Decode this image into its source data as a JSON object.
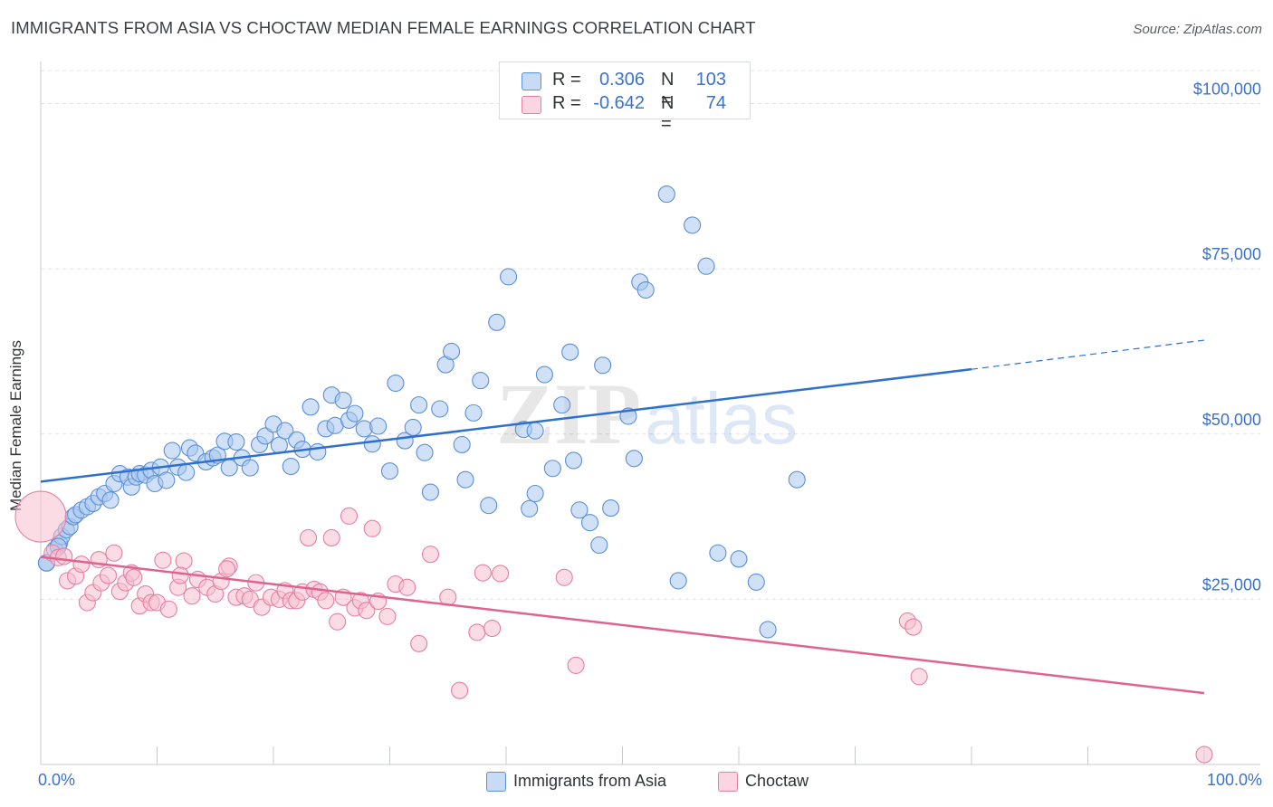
{
  "title": "IMMIGRANTS FROM ASIA VS CHOCTAW MEDIAN FEMALE EARNINGS CORRELATION CHART",
  "source": "Source: ZipAtlas.com",
  "watermark": "ZIPatlas",
  "legend_top": {
    "rows": [
      {
        "r_label": "R =",
        "r_value": "0.306",
        "n_label": "N =",
        "n_value": "103",
        "color": "#a9c8f0",
        "stroke": "#5b8fd6"
      },
      {
        "r_label": "R =",
        "r_value": "-0.642",
        "n_label": "N =",
        "n_value": "74",
        "color": "#f7bfd0",
        "stroke": "#e77ea3"
      }
    ]
  },
  "chart_data": {
    "type": "scatter",
    "xlabel": "",
    "ylabel": "Median Female Earnings",
    "x_tick_labels": [
      "0.0%",
      "100.0%"
    ],
    "y_tick_labels": [
      "$25,000",
      "$50,000",
      "$75,000",
      "$100,000"
    ],
    "xlim": [
      0,
      100
    ],
    "ylim": [
      0,
      105000
    ],
    "y_ticks": [
      25000,
      50000,
      75000,
      100000
    ],
    "grid": true,
    "legend": "bottom",
    "series": [
      {
        "name": "Immigrants from Asia",
        "color": "#a9c8f0",
        "stroke": "#5b8fd6",
        "line_color": "#2e6fcf",
        "trend": {
          "x0": 0,
          "y0": 42800,
          "x1": 80,
          "y1": 59800,
          "dash_to_x": 100,
          "dash_to_y": 64200
        },
        "points": [
          [
            0.5,
            30500
          ],
          [
            1.2,
            32500
          ],
          [
            1.6,
            33500
          ],
          [
            1.8,
            34500
          ],
          [
            2.2,
            35500
          ],
          [
            2.5,
            36000
          ],
          [
            2.8,
            37500
          ],
          [
            3.0,
            37800
          ],
          [
            3.5,
            38500
          ],
          [
            4.0,
            39000
          ],
          [
            4.5,
            39500
          ],
          [
            5.0,
            40500
          ],
          [
            5.5,
            41000
          ],
          [
            6.0,
            40000
          ],
          [
            6.3,
            42500
          ],
          [
            6.8,
            44000
          ],
          [
            7.5,
            43500
          ],
          [
            7.8,
            42000
          ],
          [
            8.2,
            43500
          ],
          [
            8.5,
            44000
          ],
          [
            9.0,
            43800
          ],
          [
            9.5,
            44500
          ],
          [
            9.8,
            42500
          ],
          [
            10.3,
            45000
          ],
          [
            10.8,
            43000
          ],
          [
            11.3,
            47500
          ],
          [
            11.8,
            45000
          ],
          [
            12.5,
            44200
          ],
          [
            12.8,
            47900
          ],
          [
            13.3,
            47100
          ],
          [
            14.2,
            45800
          ],
          [
            14.8,
            46400
          ],
          [
            15.2,
            46800
          ],
          [
            15.8,
            48900
          ],
          [
            16.2,
            44900
          ],
          [
            16.8,
            48800
          ],
          [
            17.3,
            46400
          ],
          [
            18.0,
            44900
          ],
          [
            18.8,
            48400
          ],
          [
            19.3,
            49700
          ],
          [
            20.0,
            51500
          ],
          [
            20.5,
            48300
          ],
          [
            21.0,
            50500
          ],
          [
            21.5,
            45100
          ],
          [
            22.0,
            49100
          ],
          [
            22.5,
            47700
          ],
          [
            23.2,
            54100
          ],
          [
            23.8,
            47300
          ],
          [
            24.5,
            50800
          ],
          [
            25.0,
            55900
          ],
          [
            25.3,
            51300
          ],
          [
            26.0,
            55100
          ],
          [
            26.5,
            52100
          ],
          [
            27.0,
            53100
          ],
          [
            27.8,
            50800
          ],
          [
            28.5,
            48500
          ],
          [
            29.0,
            51200
          ],
          [
            30.0,
            44400
          ],
          [
            30.5,
            57700
          ],
          [
            31.3,
            49000
          ],
          [
            32.0,
            51000
          ],
          [
            32.5,
            54400
          ],
          [
            33.0,
            47200
          ],
          [
            33.5,
            41200
          ],
          [
            34.3,
            53800
          ],
          [
            34.8,
            60500
          ],
          [
            35.3,
            62500
          ],
          [
            36.2,
            48400
          ],
          [
            36.5,
            43100
          ],
          [
            37.2,
            53200
          ],
          [
            37.8,
            58100
          ],
          [
            38.5,
            39200
          ],
          [
            39.2,
            66900
          ],
          [
            40.2,
            73800
          ],
          [
            41.5,
            50700
          ],
          [
            42.0,
            38700
          ],
          [
            42.5,
            41000
          ],
          [
            42.5,
            50500
          ],
          [
            43.3,
            59000
          ],
          [
            44.0,
            44800
          ],
          [
            44.8,
            54400
          ],
          [
            45.5,
            62400
          ],
          [
            45.8,
            46000
          ],
          [
            46.3,
            38500
          ],
          [
            47.2,
            36600
          ],
          [
            48.0,
            33200
          ],
          [
            48.3,
            60400
          ],
          [
            49.0,
            38800
          ],
          [
            50.5,
            52700
          ],
          [
            51.0,
            46300
          ],
          [
            51.5,
            73000
          ],
          [
            52.0,
            71800
          ],
          [
            53.8,
            86300
          ],
          [
            54.8,
            27800
          ],
          [
            56.0,
            81600
          ],
          [
            57.2,
            75400
          ],
          [
            58.2,
            32000
          ],
          [
            60.0,
            31100
          ],
          [
            61.5,
            27600
          ],
          [
            62.5,
            20400
          ],
          [
            65.0,
            43100
          ],
          [
            0.5,
            30500
          ],
          [
            1.5,
            33000
          ]
        ]
      },
      {
        "name": "Choctaw",
        "color": "#f7bfd0",
        "stroke": "#e77ea3",
        "line_color": "#e0638f",
        "trend": {
          "x0": 0,
          "y0": 31400,
          "x1": 100,
          "y1": 10800
        },
        "points": [
          [
            0.0,
            37500
          ],
          [
            1.0,
            32000
          ],
          [
            1.5,
            31300
          ],
          [
            2.0,
            31500
          ],
          [
            2.3,
            27800
          ],
          [
            3.0,
            28500
          ],
          [
            3.5,
            30300
          ],
          [
            4.0,
            24500
          ],
          [
            4.5,
            26000
          ],
          [
            5.2,
            27500
          ],
          [
            5.8,
            28600
          ],
          [
            6.3,
            32000
          ],
          [
            6.8,
            26200
          ],
          [
            7.3,
            27500
          ],
          [
            7.8,
            29000
          ],
          [
            8.5,
            24000
          ],
          [
            9.0,
            25800
          ],
          [
            9.5,
            24500
          ],
          [
            10.0,
            24500
          ],
          [
            10.5,
            30900
          ],
          [
            11.0,
            23500
          ],
          [
            11.8,
            26800
          ],
          [
            12.3,
            30800
          ],
          [
            13.0,
            25500
          ],
          [
            13.5,
            28000
          ],
          [
            14.3,
            26800
          ],
          [
            15.0,
            25800
          ],
          [
            15.5,
            27700
          ],
          [
            16.2,
            30000
          ],
          [
            16.8,
            25300
          ],
          [
            17.5,
            25500
          ],
          [
            18.0,
            25000
          ],
          [
            18.5,
            27500
          ],
          [
            19.0,
            23800
          ],
          [
            19.8,
            25300
          ],
          [
            20.5,
            25000
          ],
          [
            21.0,
            26300
          ],
          [
            21.5,
            24800
          ],
          [
            22.0,
            24800
          ],
          [
            22.5,
            26100
          ],
          [
            23.0,
            34300
          ],
          [
            23.5,
            26500
          ],
          [
            24.0,
            26100
          ],
          [
            24.5,
            24800
          ],
          [
            25.0,
            34300
          ],
          [
            25.5,
            21600
          ],
          [
            26.0,
            25300
          ],
          [
            26.5,
            37600
          ],
          [
            27.0,
            23700
          ],
          [
            27.5,
            24800
          ],
          [
            28.0,
            23300
          ],
          [
            28.5,
            35700
          ],
          [
            29.0,
            24700
          ],
          [
            29.8,
            22400
          ],
          [
            30.5,
            27300
          ],
          [
            31.5,
            26800
          ],
          [
            32.5,
            18300
          ],
          [
            33.5,
            31800
          ],
          [
            35.0,
            25300
          ],
          [
            36.0,
            11200
          ],
          [
            37.5,
            20000
          ],
          [
            38.0,
            29000
          ],
          [
            38.8,
            20600
          ],
          [
            39.5,
            28900
          ],
          [
            45.0,
            28300
          ],
          [
            46.0,
            15000
          ],
          [
            74.5,
            21700
          ],
          [
            75.0,
            20800
          ],
          [
            75.5,
            13300
          ],
          [
            100.0,
            1500
          ],
          [
            5.0,
            31000
          ],
          [
            8.0,
            28300
          ],
          [
            12.0,
            28600
          ],
          [
            16.0,
            29600
          ]
        ]
      }
    ]
  }
}
